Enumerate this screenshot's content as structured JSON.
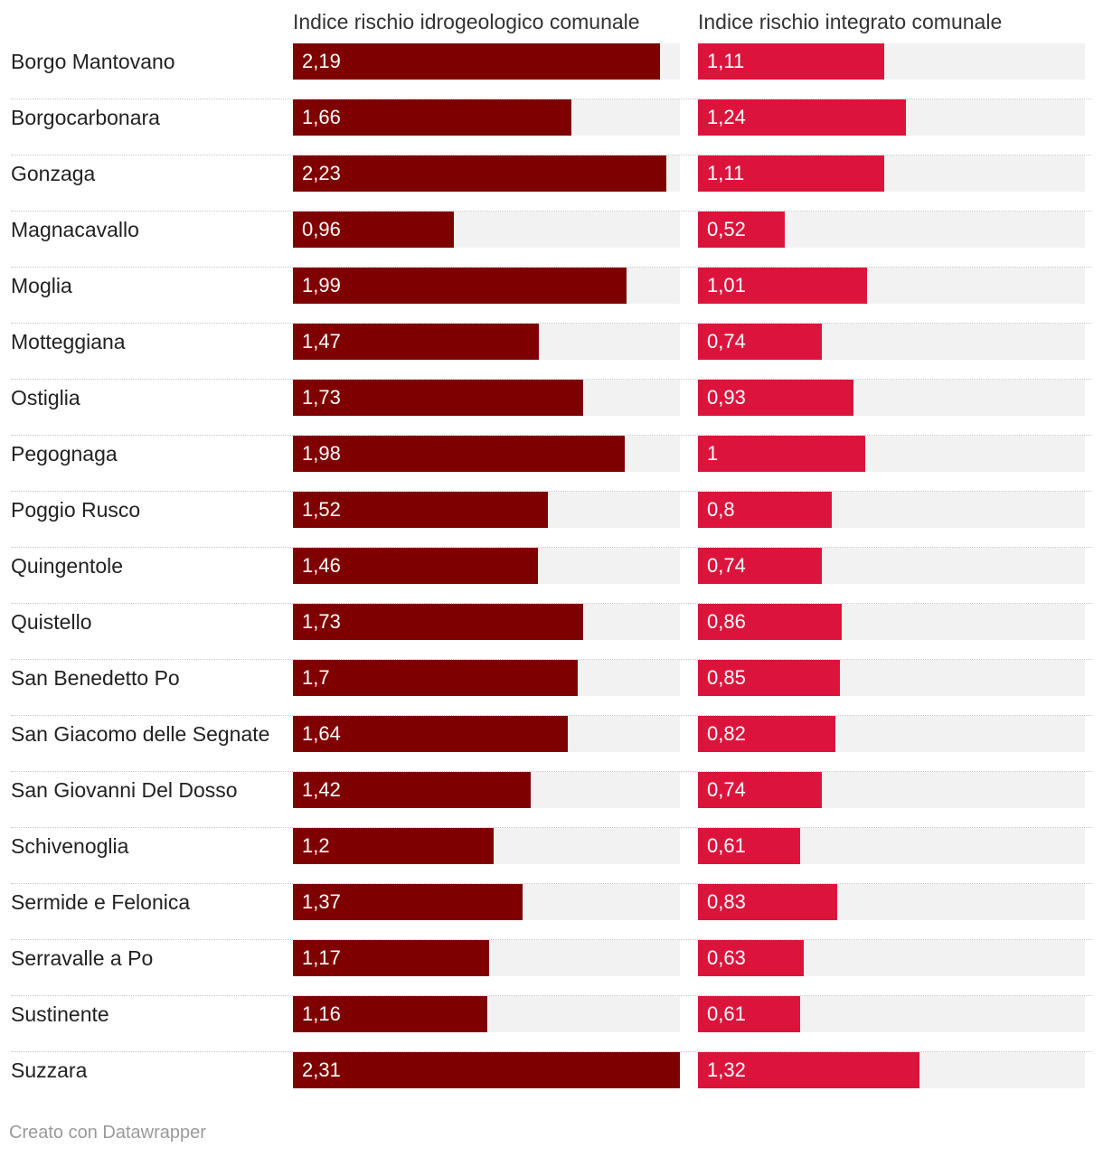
{
  "chart_data": {
    "type": "bar",
    "series": [
      {
        "name": "Indice rischio idrogeologico comunale",
        "color": "#7f0000",
        "max": 2.31,
        "values": [
          2.19,
          1.66,
          2.23,
          0.96,
          1.99,
          1.47,
          1.73,
          1.98,
          1.52,
          1.46,
          1.73,
          1.7,
          1.64,
          1.42,
          1.2,
          1.37,
          1.17,
          1.16,
          2.31
        ],
        "labels": [
          "2,19",
          "1,66",
          "2,23",
          "0,96",
          "1,99",
          "1,47",
          "1,73",
          "1,98",
          "1,52",
          "1,46",
          "1,73",
          "1,7",
          "1,64",
          "1,42",
          "1,2",
          "1,37",
          "1,17",
          "1,16",
          "2,31"
        ]
      },
      {
        "name": "Indice rischio integrato comunale",
        "color": "#dc143c",
        "max": 2.31,
        "values": [
          1.11,
          1.24,
          1.11,
          0.52,
          1.01,
          0.74,
          0.93,
          1,
          0.8,
          0.74,
          0.86,
          0.85,
          0.82,
          0.74,
          0.61,
          0.83,
          0.63,
          0.61,
          1.32
        ],
        "labels": [
          "1,11",
          "1,24",
          "1,11",
          "0,52",
          "1,01",
          "0,74",
          "0,93",
          "1",
          "0,8",
          "0,74",
          "0,86",
          "0,85",
          "0,82",
          "0,74",
          "0,61",
          "0,83",
          "0,63",
          "0,61",
          "1,32"
        ]
      }
    ],
    "categories": [
      "Borgo Mantovano",
      "Borgocarbonara",
      "Gonzaga",
      "Magnacavallo",
      "Moglia",
      "Motteggiana",
      "Ostiglia",
      "Pegognaga",
      "Poggio Rusco",
      "Quingentole",
      "Quistello",
      "San Benedetto Po",
      "San Giacomo delle Segnate",
      "San Giovanni Del Dosso",
      "Schivenoglia",
      "Sermide e Felonica",
      "Serravalle a Po",
      "Sustinente",
      "Suzzara"
    ],
    "track_color": "#f2f2f2"
  },
  "footer": "Creato con Datawrapper"
}
